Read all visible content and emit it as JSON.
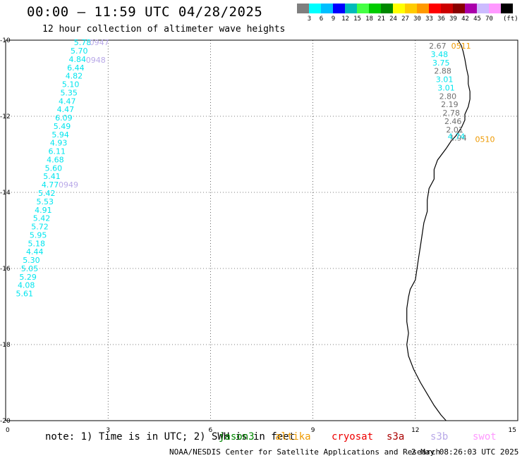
{
  "title": "00:00 – 11:59 UTC 04/28/2025",
  "subtitle": "12 hour collection of altimeter wave heights",
  "scale": {
    "swatches": [
      {
        "color": "#7f7f7f",
        "label": ""
      },
      {
        "color": "#00ffff",
        "label": "3"
      },
      {
        "color": "#00bfff",
        "label": "6"
      },
      {
        "color": "#0000ff",
        "label": "9"
      },
      {
        "color": "#00bbbb",
        "label": "12"
      },
      {
        "color": "#44ff44",
        "label": "15"
      },
      {
        "color": "#00cc00",
        "label": "18"
      },
      {
        "color": "#008800",
        "label": "21"
      },
      {
        "color": "#ffff00",
        "label": "24"
      },
      {
        "color": "#ffcc00",
        "label": "27"
      },
      {
        "color": "#ff9900",
        "label": "30"
      },
      {
        "color": "#ff0000",
        "label": "33"
      },
      {
        "color": "#cc0000",
        "label": "36"
      },
      {
        "color": "#880000",
        "label": "39"
      },
      {
        "color": "#aa00aa",
        "label": "42"
      },
      {
        "color": "#ccbbff",
        "label": "45"
      },
      {
        "color": "#ff99ff",
        "label": "70"
      },
      {
        "color": "#000000",
        "label": ""
      }
    ],
    "unit": "(ft)"
  },
  "axes": {
    "x_ticks": [
      "0",
      "3",
      "6",
      "9",
      "12",
      "15"
    ],
    "y_ticks": [
      "-10",
      "-12",
      "-14",
      "-16",
      "-18",
      "-20"
    ]
  },
  "colors": {
    "cyan": "#00e5ee",
    "gray": "#707070",
    "lavender": "#b8a8e8",
    "orange": "#ee9900"
  },
  "wave_labels": [
    {
      "text": "5.78",
      "lon": 2.0,
      "lat": -10.04,
      "color": "cyan"
    },
    {
      "text": "5.70",
      "lon": 1.9,
      "lat": -10.26,
      "color": "cyan"
    },
    {
      "text": "4.84",
      "lon": 1.85,
      "lat": -10.48,
      "color": "cyan"
    },
    {
      "text": "6.44",
      "lon": 1.8,
      "lat": -10.7,
      "color": "cyan"
    },
    {
      "text": "4.82",
      "lon": 1.75,
      "lat": -10.92,
      "color": "cyan"
    },
    {
      "text": "5.10",
      "lon": 1.65,
      "lat": -11.14,
      "color": "cyan"
    },
    {
      "text": "5.35",
      "lon": 1.6,
      "lat": -11.36,
      "color": "cyan"
    },
    {
      "text": "4.47",
      "lon": 1.55,
      "lat": -11.58,
      "color": "cyan"
    },
    {
      "text": "4.47",
      "lon": 1.5,
      "lat": -11.8,
      "color": "cyan"
    },
    {
      "text": "6.09",
      "lon": 1.45,
      "lat": -12.02,
      "color": "cyan"
    },
    {
      "text": "5.49",
      "lon": 1.4,
      "lat": -12.24,
      "color": "cyan"
    },
    {
      "text": "5.94",
      "lon": 1.35,
      "lat": -12.46,
      "color": "cyan"
    },
    {
      "text": "4.93",
      "lon": 1.3,
      "lat": -12.68,
      "color": "cyan"
    },
    {
      "text": "6.11",
      "lon": 1.25,
      "lat": -12.9,
      "color": "cyan"
    },
    {
      "text": "4.68",
      "lon": 1.2,
      "lat": -13.12,
      "color": "cyan"
    },
    {
      "text": "5.60",
      "lon": 1.15,
      "lat": -13.34,
      "color": "cyan"
    },
    {
      "text": "5.41",
      "lon": 1.1,
      "lat": -13.56,
      "color": "cyan"
    },
    {
      "text": "4.77",
      "lon": 1.05,
      "lat": -13.78,
      "color": "cyan"
    },
    {
      "text": "5.42",
      "lon": 0.95,
      "lat": -14.0,
      "color": "cyan"
    },
    {
      "text": "5.53",
      "lon": 0.9,
      "lat": -14.22,
      "color": "cyan"
    },
    {
      "text": "4.91",
      "lon": 0.85,
      "lat": -14.44,
      "color": "cyan"
    },
    {
      "text": "5.42",
      "lon": 0.8,
      "lat": -14.66,
      "color": "cyan"
    },
    {
      "text": "5.72",
      "lon": 0.75,
      "lat": -14.88,
      "color": "cyan"
    },
    {
      "text": "5.95",
      "lon": 0.7,
      "lat": -15.1,
      "color": "cyan"
    },
    {
      "text": "5.18",
      "lon": 0.65,
      "lat": -15.32,
      "color": "cyan"
    },
    {
      "text": "4.44",
      "lon": 0.6,
      "lat": -15.54,
      "color": "cyan"
    },
    {
      "text": "5.30",
      "lon": 0.5,
      "lat": -15.76,
      "color": "cyan"
    },
    {
      "text": "5.05",
      "lon": 0.45,
      "lat": -15.98,
      "color": "cyan"
    },
    {
      "text": "5.29",
      "lon": 0.4,
      "lat": -16.2,
      "color": "cyan"
    },
    {
      "text": "4.08",
      "lon": 0.35,
      "lat": -16.42,
      "color": "cyan"
    },
    {
      "text": "5.61",
      "lon": 0.3,
      "lat": -16.64,
      "color": "cyan"
    },
    {
      "text": "2.67",
      "lon": 12.4,
      "lat": -10.13,
      "color": "gray"
    },
    {
      "text": "3.48",
      "lon": 12.45,
      "lat": -10.35,
      "color": "cyan"
    },
    {
      "text": "3.75",
      "lon": 12.5,
      "lat": -10.57,
      "color": "cyan"
    },
    {
      "text": "2.88",
      "lon": 12.55,
      "lat": -10.79,
      "color": "gray"
    },
    {
      "text": "3.01",
      "lon": 12.6,
      "lat": -11.01,
      "color": "cyan"
    },
    {
      "text": "3.01",
      "lon": 12.65,
      "lat": -11.23,
      "color": "cyan"
    },
    {
      "text": "2.80",
      "lon": 12.7,
      "lat": -11.45,
      "color": "gray"
    },
    {
      "text": "2.19",
      "lon": 12.75,
      "lat": -11.67,
      "color": "gray"
    },
    {
      "text": "2.78",
      "lon": 12.8,
      "lat": -11.89,
      "color": "gray"
    },
    {
      "text": "2.46",
      "lon": 12.85,
      "lat": -12.11,
      "color": "gray"
    },
    {
      "text": "2.01",
      "lon": 12.9,
      "lat": -12.33,
      "color": "gray"
    },
    {
      "text": "1.94",
      "lon": 13.0,
      "lat": -12.55,
      "color": "gray"
    },
    {
      "text": "4.74",
      "lon": 12.95,
      "lat": -12.51,
      "color": "cyan"
    }
  ],
  "time_labels": [
    {
      "text": "0947",
      "lon": 2.45,
      "lat": -10.04,
      "color": "lavender"
    },
    {
      "text": "0948",
      "lon": 2.35,
      "lat": -10.5,
      "color": "lavender"
    },
    {
      "text": "0949",
      "lon": 1.55,
      "lat": -13.78,
      "color": "lavender"
    },
    {
      "text": "0511",
      "lon": 13.05,
      "lat": -10.13,
      "color": "orange"
    },
    {
      "text": "0510",
      "lon": 13.75,
      "lat": -12.58,
      "color": "orange"
    }
  ],
  "coastline": [
    [
      13.25,
      -10.0
    ],
    [
      13.35,
      -10.15
    ],
    [
      13.4,
      -10.3
    ],
    [
      13.45,
      -10.5
    ],
    [
      13.5,
      -10.75
    ],
    [
      13.55,
      -10.95
    ],
    [
      13.55,
      -11.15
    ],
    [
      13.6,
      -11.35
    ],
    [
      13.6,
      -11.55
    ],
    [
      13.55,
      -11.75
    ],
    [
      13.45,
      -11.95
    ],
    [
      13.45,
      -12.1
    ],
    [
      13.35,
      -12.3
    ],
    [
      13.2,
      -12.5
    ],
    [
      13.05,
      -12.65
    ],
    [
      12.9,
      -12.85
    ],
    [
      12.65,
      -13.15
    ],
    [
      12.55,
      -13.4
    ],
    [
      12.55,
      -13.65
    ],
    [
      12.4,
      -13.9
    ],
    [
      12.35,
      -14.2
    ],
    [
      12.35,
      -14.5
    ],
    [
      12.25,
      -14.8
    ],
    [
      12.2,
      -15.1
    ],
    [
      12.15,
      -15.4
    ],
    [
      12.1,
      -15.7
    ],
    [
      12.05,
      -16.0
    ],
    [
      12.0,
      -16.3
    ],
    [
      11.85,
      -16.55
    ],
    [
      11.8,
      -16.75
    ],
    [
      11.75,
      -17.05
    ],
    [
      11.75,
      -17.4
    ],
    [
      11.8,
      -17.7
    ],
    [
      11.75,
      -18.0
    ],
    [
      11.8,
      -18.3
    ],
    [
      11.95,
      -18.65
    ],
    [
      12.15,
      -19.0
    ],
    [
      12.35,
      -19.3
    ],
    [
      12.55,
      -19.6
    ],
    [
      12.75,
      -19.85
    ],
    [
      12.9,
      -20.0
    ]
  ],
  "footer": {
    "note": "note: 1) Time is in UTC; 2) SWH is in feet",
    "satellites": [
      {
        "name": "jason3",
        "color": "#008800"
      },
      {
        "name": "altika",
        "color": "#ee9900"
      },
      {
        "name": "cryosat",
        "color": "#ee0000"
      },
      {
        "name": "s3a",
        "color": "#aa0000"
      },
      {
        "name": "s3b",
        "color": "#b8a8e8"
      },
      {
        "name": "swot",
        "color": "#ff99ff"
      }
    ],
    "credit": "NOAA/NESDIS Center for Satellite Applications and Research",
    "stamp": "2 May 08:26:03 UTC 2025"
  }
}
